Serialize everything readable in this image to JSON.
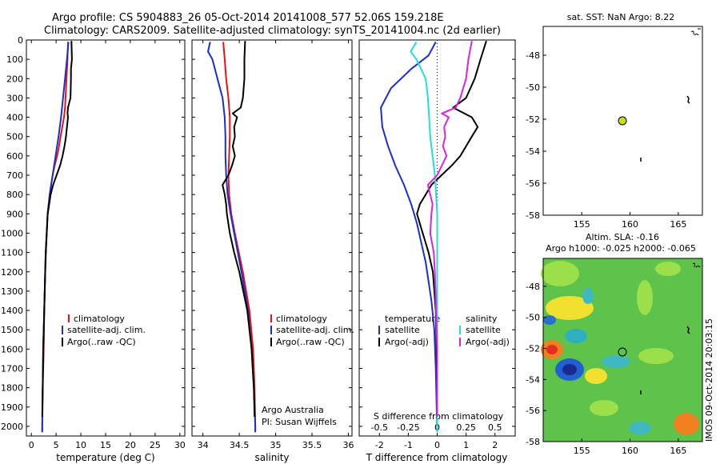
{
  "title": {
    "line1": "Argo profile: CS 5904883_26 05-Oct-2014 20141008_577 52.06S 159.218E",
    "line2": "Climatology: CARS2009. Satellite-adjusted climatology: synTS_20141004.nc (2d earlier)"
  },
  "colors": {
    "climatology": "#ee1111",
    "satellite": "#1a2fd0",
    "argo": "#000000",
    "sal_satellite": "#22dddd",
    "sal_argo": "#e020e0",
    "sst_marker": "#ccdd22"
  },
  "depth_ticks": [
    0,
    100,
    200,
    300,
    400,
    500,
    600,
    700,
    800,
    900,
    1000,
    1100,
    1200,
    1300,
    1400,
    1500,
    1600,
    1700,
    1800,
    1900,
    2000
  ],
  "panels": {
    "temperature": {
      "xlabel": "temperature (deg C)",
      "xticks": [
        0,
        5,
        10,
        15,
        20,
        25,
        30
      ],
      "xlim": [
        -1,
        31
      ],
      "legend": [
        "climatology",
        "satellite-adj. clim.",
        "Argo(..raw -QC)"
      ]
    },
    "salinity": {
      "xlabel": "salinity",
      "xticks": [
        34,
        34.5,
        35,
        35.5,
        36
      ],
      "xlim": [
        33.85,
        36.05
      ],
      "legend": [
        "climatology",
        "satellite-adj. clim.",
        "Argo(..raw -QC)"
      ],
      "note1": "Argo Australia",
      "note2": "PI: Susan Wijffels"
    },
    "difference": {
      "xlabel": "T difference from climatology",
      "top_label": "S difference from climatology",
      "t_ticks": [
        "-2",
        "-1",
        "0",
        "1",
        "2"
      ],
      "s_ticks": [
        "-0.5",
        "-0.25",
        "0",
        "0.25",
        "0.5"
      ],
      "xlim": [
        -2.7,
        2.7
      ],
      "legend_temp_title": "temperature",
      "legend_sal_title": "salinity",
      "legend_temp": [
        "satellite",
        "Argo(-adj)"
      ],
      "legend_sal": [
        "satellite",
        "Argo(-adj)"
      ]
    }
  },
  "map_sst": {
    "title": "sat. SST: NaN  Argo: 8.22",
    "xticks": [
      155,
      160,
      165
    ],
    "yticks": [
      -48,
      -50,
      -52,
      -54,
      -56,
      -58
    ],
    "xlim": [
      151,
      167.5
    ],
    "ylim": [
      -58,
      -46.2
    ],
    "float_position": [
      159.218,
      -52.06
    ]
  },
  "map_sla": {
    "title1": "Altim. SLA: -0.16",
    "title2": "Argo h1000: -0.025  h2000: -0.065",
    "xticks": [
      155,
      160,
      165
    ],
    "yticks": [
      -48,
      -50,
      -52,
      -54,
      -56,
      -58
    ],
    "xlim": [
      151,
      167.5
    ],
    "ylim": [
      -58,
      -46.2
    ],
    "float_position": [
      159.218,
      -52.06
    ]
  },
  "side_label": "IMOS 09-Oct-2014 20:03:15",
  "chart_data": [
    {
      "type": "line",
      "title": "",
      "xlabel": "temperature (deg C)",
      "ylabel": "",
      "xlim": [
        -1,
        31
      ],
      "ylim": [
        2050,
        0
      ],
      "series": [
        {
          "name": "climatology",
          "depth": [
            10,
            100,
            200,
            300,
            350,
            400,
            500,
            550,
            600,
            650,
            700,
            750,
            800,
            850,
            900,
            1000,
            1100,
            1200,
            1400,
            1600,
            1800,
            2000,
            2030
          ],
          "values": [
            7.4,
            7.3,
            7.1,
            6.9,
            6.8,
            6.6,
            5.9,
            5.6,
            5.2,
            4.7,
            4.3,
            4.0,
            3.7,
            3.5,
            3.3,
            3.1,
            2.9,
            2.8,
            2.6,
            2.5,
            2.3,
            2.2,
            2.2
          ]
        },
        {
          "name": "satellite-adj. clim.",
          "depth": [
            10,
            100,
            200,
            300,
            400,
            500,
            600,
            700,
            800,
            900,
            1000,
            1200,
            1400,
            1600,
            1800,
            2000,
            2030
          ],
          "values": [
            7.5,
            7.2,
            6.8,
            6.4,
            6.0,
            5.5,
            4.9,
            4.3,
            3.7,
            3.3,
            3.1,
            2.8,
            2.6,
            2.4,
            2.3,
            2.2,
            2.2
          ]
        },
        {
          "name": "Argo(..raw -QC)",
          "depth": [
            5,
            100,
            150,
            200,
            300,
            350,
            380,
            400,
            450,
            500,
            550,
            600,
            650,
            700,
            750,
            800,
            850,
            900,
            1000,
            1100,
            1200,
            1400,
            1600,
            1800,
            1950
          ],
          "values": [
            8.1,
            8.2,
            8.0,
            8.0,
            7.9,
            7.4,
            7.3,
            7.4,
            7.2,
            7.0,
            6.7,
            6.3,
            5.8,
            5.1,
            4.4,
            3.9,
            3.6,
            3.3,
            3.1,
            2.9,
            2.8,
            2.6,
            2.4,
            2.3,
            2.2
          ]
        }
      ]
    },
    {
      "type": "line",
      "title": "",
      "xlabel": "salinity",
      "ylabel": "",
      "xlim": [
        33.85,
        36.05
      ],
      "ylim": [
        2050,
        0
      ],
      "series": [
        {
          "name": "climatology",
          "depth": [
            10,
            100,
            200,
            300,
            350,
            400,
            500,
            600,
            700,
            800,
            900,
            1000,
            1200,
            1400,
            1600,
            1800,
            2000,
            2030
          ],
          "values": [
            34.28,
            34.3,
            34.32,
            34.35,
            34.36,
            34.37,
            34.37,
            34.36,
            34.35,
            34.36,
            34.39,
            34.44,
            34.55,
            34.64,
            34.69,
            34.71,
            34.72,
            34.72
          ]
        },
        {
          "name": "satellite-adj. clim.",
          "depth": [
            10,
            60,
            100,
            200,
            300,
            400,
            500,
            600,
            700,
            800,
            900,
            1000,
            1200,
            1400,
            1600,
            1800,
            2000,
            2030
          ],
          "values": [
            34.1,
            34.07,
            34.13,
            34.2,
            34.27,
            34.3,
            34.31,
            34.31,
            34.32,
            34.34,
            34.38,
            34.43,
            34.53,
            34.62,
            34.67,
            34.7,
            34.72,
            34.72
          ]
        },
        {
          "name": "Argo(..raw -QC)",
          "depth": [
            5,
            100,
            200,
            300,
            350,
            380,
            400,
            450,
            500,
            550,
            600,
            650,
            700,
            750,
            800,
            850,
            900,
            1000,
            1100,
            1200,
            1400,
            1600,
            1800,
            1950
          ],
          "values": [
            34.58,
            34.57,
            34.57,
            34.55,
            34.52,
            34.41,
            34.47,
            34.43,
            34.44,
            34.41,
            34.44,
            34.4,
            34.35,
            34.27,
            34.3,
            34.32,
            34.33,
            34.37,
            34.43,
            34.5,
            34.61,
            34.67,
            34.7,
            34.71
          ]
        }
      ]
    },
    {
      "type": "line",
      "title": "",
      "xlabel": "T difference from climatology",
      "ylabel": "",
      "xlim": [
        -2.7,
        2.7
      ],
      "ylim": [
        2050,
        0
      ],
      "series": [
        {
          "name": "satellite",
          "depth": [
            10,
            80,
            150,
            250,
            350,
            450,
            550,
            650,
            750,
            850,
            950,
            1050,
            1150,
            1250,
            1350,
            1500,
            1700,
            1900,
            2030
          ],
          "values": [
            -0.05,
            -0.3,
            -0.9,
            -1.6,
            -1.95,
            -1.9,
            -1.7,
            -1.45,
            -1.15,
            -0.9,
            -0.7,
            -0.55,
            -0.4,
            -0.3,
            -0.2,
            -0.1,
            -0.05,
            -0.02,
            0.0
          ]
        },
        {
          "name": "Argo(-adj)",
          "depth": [
            5,
            100,
            200,
            300,
            350,
            400,
            450,
            500,
            550,
            600,
            650,
            700,
            750,
            800,
            850,
            900,
            1000,
            1100,
            1200,
            1300,
            1400,
            1600,
            1800,
            1950
          ],
          "values": [
            1.7,
            1.5,
            1.3,
            1.0,
            0.55,
            1.2,
            1.4,
            1.2,
            1.0,
            0.8,
            0.5,
            0.15,
            -0.2,
            -0.4,
            -0.6,
            -0.7,
            -0.5,
            -0.3,
            -0.15,
            -0.1,
            -0.05,
            -0.02,
            0.0,
            0.0
          ]
        }
      ]
    },
    {
      "type": "line",
      "title": "",
      "xlabel": "S difference from climatology",
      "ylabel": "",
      "xlim": [
        -0.675,
        0.675
      ],
      "ylim": [
        2050,
        0
      ],
      "series": [
        {
          "name": "satellite",
          "depth": [
            10,
            60,
            100,
            200,
            300,
            400,
            500,
            600,
            700,
            800,
            900,
            1000,
            1200,
            1400,
            1600,
            1800,
            2030
          ],
          "values": [
            -0.18,
            -0.23,
            -0.18,
            -0.1,
            -0.08,
            -0.07,
            -0.06,
            -0.04,
            -0.02,
            -0.01,
            0.0,
            0.0,
            0.0,
            0.0,
            0.0,
            0.0,
            0.0
          ]
        },
        {
          "name": "Argo(-adj)",
          "depth": [
            5,
            100,
            200,
            300,
            350,
            380,
            400,
            450,
            500,
            550,
            600,
            650,
            700,
            750,
            800,
            850,
            900,
            1000,
            1100,
            1200,
            1400,
            1600,
            1800,
            1950
          ],
          "values": [
            0.3,
            0.27,
            0.25,
            0.2,
            0.16,
            0.04,
            0.1,
            0.06,
            0.07,
            0.05,
            0.08,
            0.04,
            0.0,
            -0.08,
            -0.06,
            -0.04,
            -0.05,
            -0.06,
            -0.03,
            -0.02,
            -0.01,
            0.0,
            0.0,
            0.0
          ]
        }
      ]
    }
  ]
}
